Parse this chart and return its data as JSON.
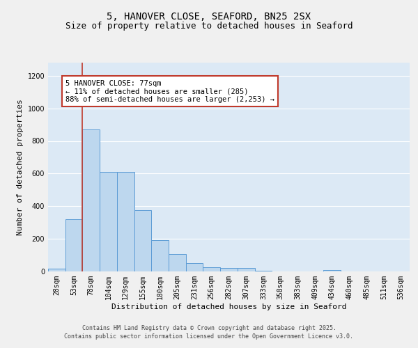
{
  "title1": "5, HANOVER CLOSE, SEAFORD, BN25 2SX",
  "title2": "Size of property relative to detached houses in Seaford",
  "xlabel": "Distribution of detached houses by size in Seaford",
  "ylabel": "Number of detached properties",
  "categories": [
    "28sqm",
    "53sqm",
    "78sqm",
    "104sqm",
    "129sqm",
    "155sqm",
    "180sqm",
    "205sqm",
    "231sqm",
    "256sqm",
    "282sqm",
    "307sqm",
    "333sqm",
    "358sqm",
    "383sqm",
    "409sqm",
    "434sqm",
    "460sqm",
    "485sqm",
    "511sqm",
    "536sqm"
  ],
  "values": [
    15,
    320,
    870,
    610,
    610,
    375,
    190,
    105,
    50,
    25,
    20,
    20,
    5,
    0,
    0,
    0,
    10,
    0,
    0,
    0,
    0
  ],
  "bar_color": "#bdd7ee",
  "bar_edge_color": "#5b9bd5",
  "vline_x_index": 2,
  "vline_color": "#c0392b",
  "annotation_line1": "5 HANOVER CLOSE: 77sqm",
  "annotation_line2": "← 11% of detached houses are smaller (285)",
  "annotation_line3": "88% of semi-detached houses are larger (2,253) →",
  "annotation_box_color": "#ffffff",
  "annotation_box_edge": "#c0392b",
  "ylim": [
    0,
    1280
  ],
  "yticks": [
    0,
    200,
    400,
    600,
    800,
    1000,
    1200
  ],
  "background_color": "#dce9f5",
  "footer_line1": "Contains HM Land Registry data © Crown copyright and database right 2025.",
  "footer_line2": "Contains public sector information licensed under the Open Government Licence v3.0.",
  "grid_color": "#ffffff",
  "title_fontsize": 10,
  "subtitle_fontsize": 9,
  "axis_label_fontsize": 8,
  "tick_fontsize": 7,
  "annotation_fontsize": 7.5,
  "footer_fontsize": 6
}
